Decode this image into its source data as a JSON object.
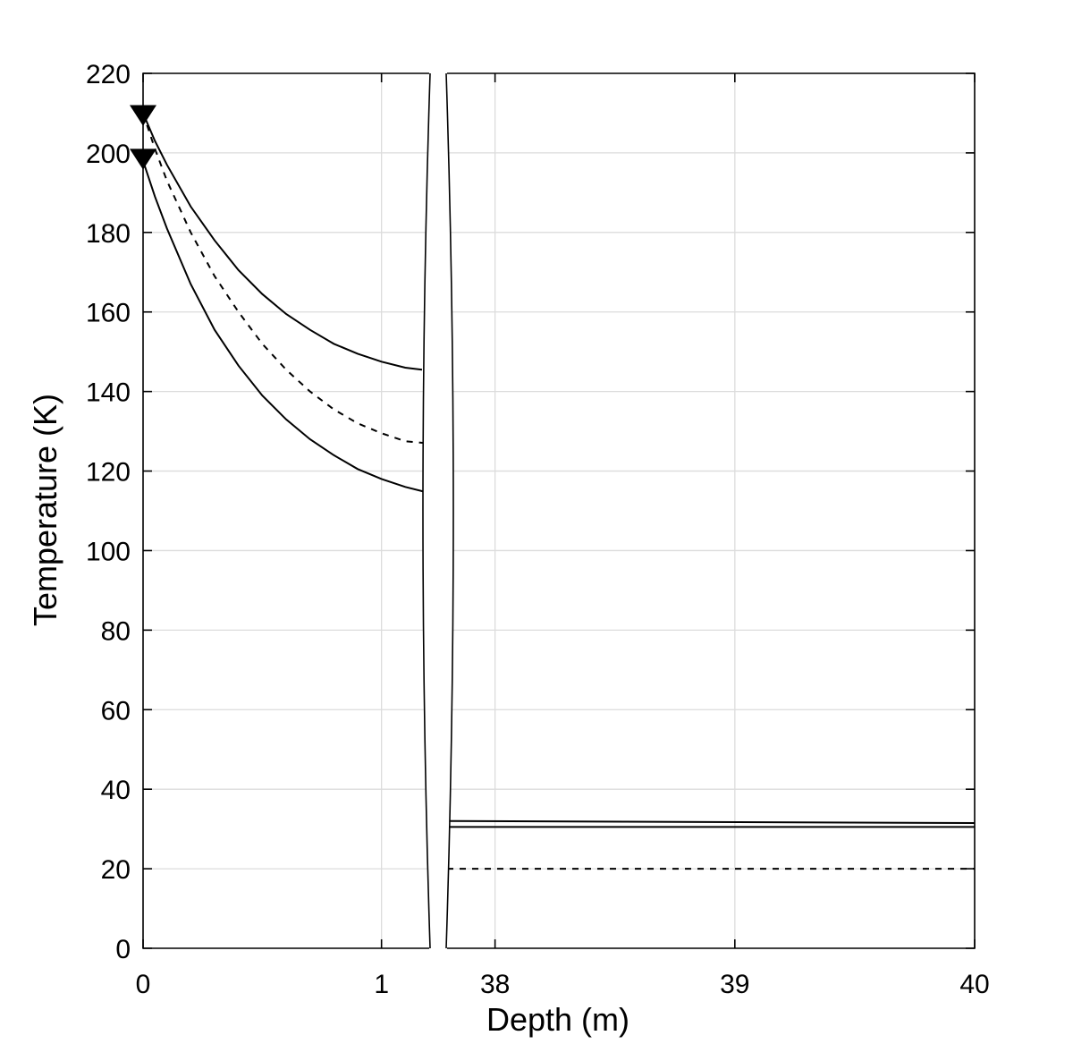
{
  "chart_data": {
    "type": "line",
    "xlabel": "Depth (m)",
    "ylabel": "Temperature (K)",
    "ylim": [
      0,
      220
    ],
    "yticks": [
      0,
      20,
      40,
      60,
      80,
      100,
      120,
      140,
      160,
      180,
      200,
      220
    ],
    "broken_x_axis": true,
    "left_panel": {
      "xlim": [
        0,
        1.2
      ],
      "xticks": [
        "0",
        "1"
      ],
      "xtick_values": [
        0,
        1
      ]
    },
    "right_panel": {
      "xlim": [
        37.8,
        40
      ],
      "xticks": [
        "38",
        "39",
        "40"
      ],
      "xtick_values": [
        38,
        39,
        40
      ]
    },
    "grid": true,
    "series": [
      {
        "style": "solid",
        "left": {
          "x": [
            0,
            0.05,
            0.1,
            0.2,
            0.3,
            0.4,
            0.5,
            0.6,
            0.7,
            0.8,
            0.9,
            1.0,
            1.1,
            1.17
          ],
          "y": [
            210,
            203,
            197,
            186.5,
            178,
            170.5,
            164.5,
            159.5,
            155.5,
            152,
            149.5,
            147.5,
            146,
            145.5
          ]
        },
        "right": {
          "x": [
            37.8,
            40
          ],
          "y": [
            32,
            31.5
          ]
        }
      },
      {
        "style": "dashed",
        "left": {
          "x": [
            0,
            0.05,
            0.1,
            0.2,
            0.3,
            0.4,
            0.5,
            0.6,
            0.7,
            0.8,
            0.9,
            1.0,
            1.1,
            1.19
          ],
          "y": [
            210,
            201,
            193,
            180,
            169,
            160,
            152,
            145.5,
            140,
            135.5,
            132,
            129.5,
            127.5,
            127
          ]
        },
        "right": {
          "x": [
            37.8,
            40
          ],
          "y": [
            20,
            20
          ]
        }
      },
      {
        "style": "solid",
        "left": {
          "x": [
            0,
            0.05,
            0.1,
            0.2,
            0.3,
            0.4,
            0.5,
            0.6,
            0.7,
            0.8,
            0.9,
            1.0,
            1.1,
            1.2
          ],
          "y": [
            198,
            189,
            181,
            167,
            155.5,
            146.5,
            139,
            133,
            128,
            124,
            120.5,
            118,
            116,
            114.5
          ]
        },
        "right": {
          "x": [
            37.8,
            40
          ],
          "y": [
            30.5,
            30.5
          ]
        }
      }
    ],
    "markers": [
      {
        "shape": "down-triangle",
        "x": 0,
        "y": 210
      },
      {
        "shape": "down-triangle",
        "x": 0,
        "y": 199
      }
    ]
  }
}
